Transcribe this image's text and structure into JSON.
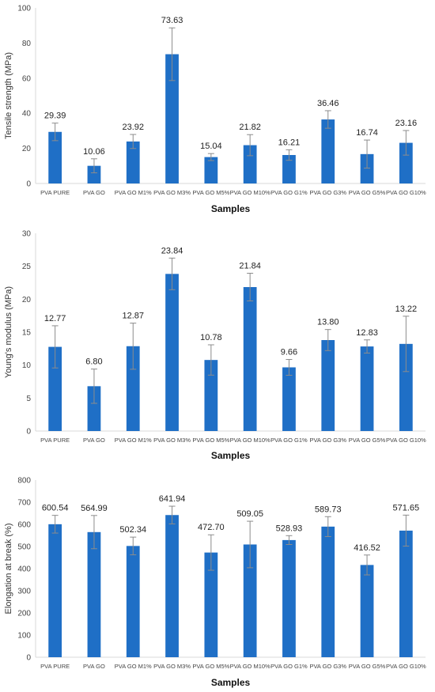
{
  "colors": {
    "bar": "#1f6fc6",
    "error": "#8c8c8c",
    "axis": "#d9d9d9"
  },
  "chart_data": [
    {
      "type": "bar",
      "categories": [
        "PVA PURE",
        "PVA GO",
        "PVA GO M1%",
        "PVA GO M3%",
        "PVA GO M5%",
        "PVA GO M10%",
        "PVA GO G1%",
        "PVA GO G3%",
        "PVA GO G5%",
        "PVA GO G10%"
      ],
      "values": [
        29.39,
        10.06,
        23.92,
        73.63,
        15.04,
        21.82,
        16.21,
        36.46,
        16.74,
        23.16
      ],
      "value_labels": [
        "29.39",
        "10.06",
        "23.92",
        "73.63",
        "15.04",
        "21.82",
        "16.21",
        "36.46",
        "16.74",
        "23.16"
      ],
      "error": [
        5,
        4,
        4,
        15,
        2,
        6,
        3,
        5,
        8,
        7
      ],
      "xlabel": "Samples",
      "ylabel": "Tensile strength (MPa)",
      "ylim": [
        0,
        100
      ],
      "yticks": [
        0,
        20,
        40,
        60,
        80,
        100
      ],
      "ytick_labels": [
        "0",
        "20",
        "40",
        "60",
        "80",
        "100"
      ],
      "grid": false
    },
    {
      "type": "bar",
      "categories": [
        "PVA PURE",
        "PVA GO",
        "PVA GO M1%",
        "PVA GO M3%",
        "PVA GO M5%",
        "PVA GO M10%",
        "PVA GO G1%",
        "PVA GO G3%",
        "PVA GO G5%",
        "PVA GO G10%"
      ],
      "values": [
        12.77,
        6.8,
        12.87,
        23.84,
        10.78,
        21.84,
        9.66,
        13.8,
        12.83,
        13.22
      ],
      "value_labels": [
        "12.77",
        "6.80",
        "12.87",
        "23.84",
        "10.78",
        "21.84",
        "9.66",
        "13.80",
        "12.83",
        "13.22"
      ],
      "error": [
        3.2,
        2.6,
        3.5,
        2.4,
        2.3,
        2.1,
        1.2,
        1.6,
        1.0,
        4.2
      ],
      "xlabel": "Samples",
      "ylabel": "Young's modulus (MPa)",
      "ylim": [
        0,
        30
      ],
      "yticks": [
        0,
        5,
        10,
        15,
        20,
        25,
        30
      ],
      "ytick_labels": [
        "0",
        "5",
        "10",
        "15",
        "20",
        "25",
        "30"
      ],
      "grid": false
    },
    {
      "type": "bar",
      "categories": [
        "PVA PURE",
        "PVA GO",
        "PVA GO M1%",
        "PVA GO M3%",
        "PVA GO M5%",
        "PVA GO M10%",
        "PVA GO G1%",
        "PVA GO G3%",
        "PVA GO G5%",
        "PVA GO G10%"
      ],
      "values": [
        600.54,
        564.99,
        502.34,
        641.94,
        472.7,
        509.05,
        528.93,
        589.73,
        416.52,
        571.65
      ],
      "value_labels": [
        "600.54",
        "564.99",
        "502.34",
        "641.94",
        "472.70",
        "509.05",
        "528.93",
        "589.73",
        "416.52",
        "571.65"
      ],
      "error": [
        40,
        75,
        40,
        40,
        80,
        105,
        20,
        45,
        45,
        70
      ],
      "xlabel": "Samples",
      "ylabel": "Elongation at break (%)",
      "ylim": [
        0,
        800
      ],
      "yticks": [
        0,
        100,
        200,
        300,
        400,
        500,
        600,
        700,
        800
      ],
      "ytick_labels": [
        "0",
        "100",
        "200",
        "300",
        "400",
        "500",
        "600",
        "700",
        "800"
      ],
      "grid": false
    }
  ]
}
